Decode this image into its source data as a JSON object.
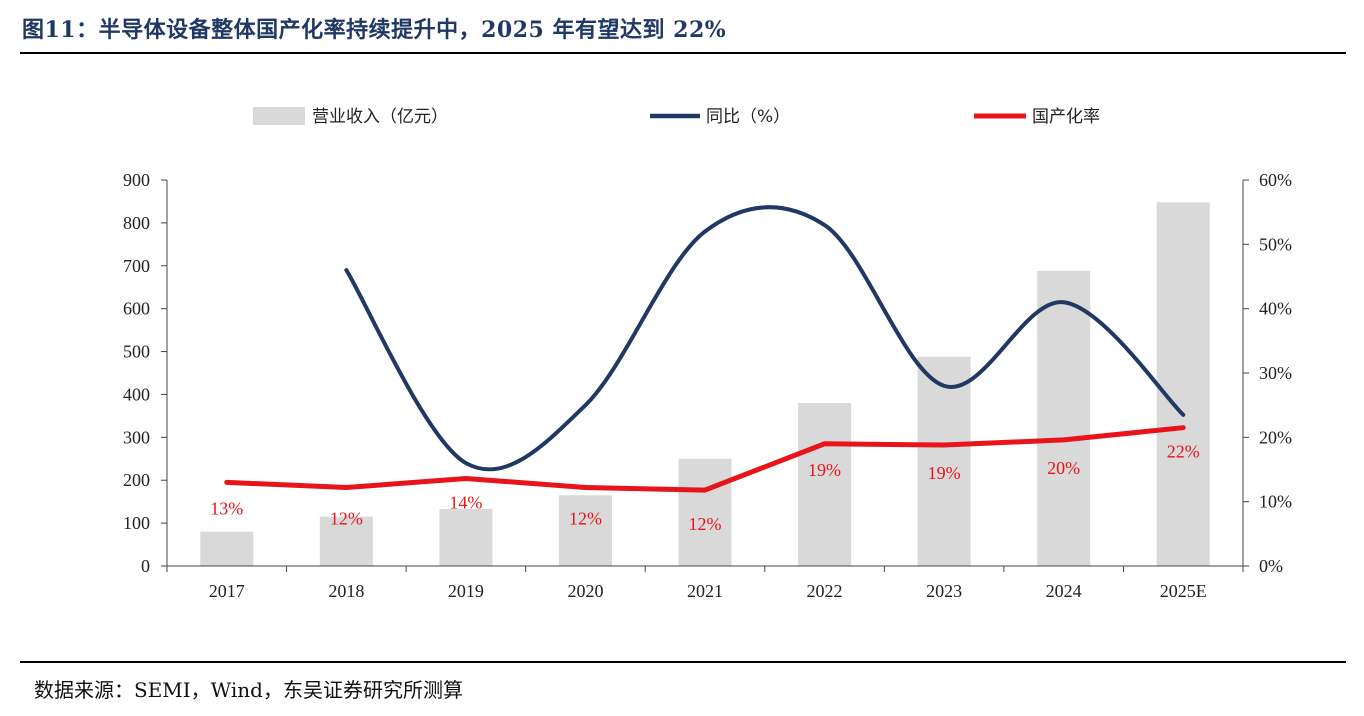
{
  "figure": {
    "title": "图11：半导体设备整体国产化率持续提升中，2025 年有望达到 22%",
    "source": "数据来源：SEMI，Wind，东吴证券研究所测算"
  },
  "chart_data": {
    "type": "bar",
    "categories": [
      "2017",
      "2018",
      "2019",
      "2020",
      "2021",
      "2022",
      "2023",
      "2024",
      "2025E"
    ],
    "series": [
      {
        "name": "营业收入（亿元）",
        "type": "bar",
        "axis": "left",
        "color": "#d9d9d9",
        "values": [
          80,
          115,
          133,
          165,
          250,
          380,
          488,
          688,
          848
        ]
      },
      {
        "name": "同比（%）",
        "type": "line",
        "axis": "right",
        "color": "#1f3864",
        "smooth": true,
        "values": [
          null,
          46,
          16,
          25,
          52,
          53,
          28,
          41,
          23.5
        ]
      },
      {
        "name": "国产化率",
        "type": "line",
        "axis": "right",
        "color": "#e8141a",
        "values": [
          13,
          12.2,
          13.6,
          12.2,
          11.8,
          19,
          18.8,
          19.6,
          21.5
        ],
        "data_labels": [
          "13%",
          "12%",
          "14%",
          "12%",
          "12%",
          "19%",
          "19%",
          "20%",
          "22%"
        ]
      }
    ],
    "y_left": {
      "min": 0,
      "max": 900,
      "ticks": [
        "0",
        "100",
        "200",
        "300",
        "400",
        "500",
        "600",
        "700",
        "800",
        "900"
      ]
    },
    "y_right": {
      "min": 0,
      "max": 60,
      "ticks": [
        "0%",
        "10%",
        "20%",
        "30%",
        "40%",
        "50%",
        "60%"
      ]
    },
    "legend": {
      "placement": "top"
    },
    "grid": false
  }
}
